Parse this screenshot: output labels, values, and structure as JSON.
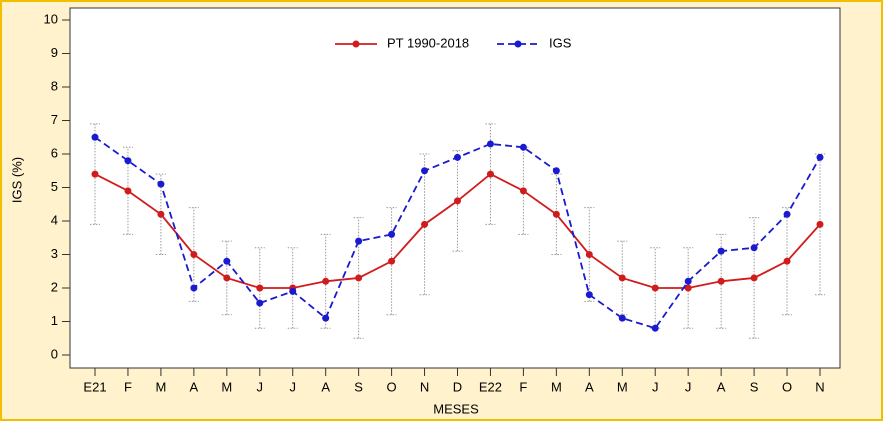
{
  "chart_data": {
    "type": "line",
    "x_label": "MESES",
    "y_label": "IGS (%)",
    "categories": [
      "E21",
      "F",
      "M",
      "A",
      "M",
      "J",
      "J",
      "A",
      "S",
      "O",
      "N",
      "D",
      "E22",
      "F",
      "M",
      "A",
      "M",
      "J",
      "J",
      "A",
      "S",
      "O",
      "N"
    ],
    "series": [
      {
        "name": "PT 1990-2018",
        "color": "#d01c1c",
        "dash": false,
        "values": [
          5.4,
          4.9,
          4.2,
          3.0,
          2.3,
          2.0,
          2.0,
          2.2,
          2.3,
          2.8,
          3.9,
          4.6,
          5.4,
          4.9,
          4.2,
          3.0,
          2.3,
          2.0,
          2.0,
          2.2,
          2.3,
          2.8,
          3.9
        ],
        "errors": [
          1.5,
          1.3,
          1.2,
          1.4,
          1.1,
          1.2,
          1.2,
          1.4,
          1.8,
          1.6,
          2.1,
          1.5,
          1.5,
          1.3,
          1.2,
          1.4,
          1.1,
          1.2,
          1.2,
          1.4,
          1.8,
          1.6,
          2.1
        ]
      },
      {
        "name": "IGS",
        "color": "#1a1ad0",
        "dash": true,
        "values": [
          6.5,
          5.8,
          5.1,
          2.0,
          2.8,
          1.55,
          1.9,
          1.1,
          3.4,
          3.6,
          5.5,
          5.9,
          6.3,
          6.2,
          5.5,
          1.8,
          1.1,
          0.8,
          2.2,
          3.1,
          3.2,
          4.2,
          5.9
        ]
      }
    ],
    "ylim": [
      0,
      10
    ],
    "yticks": [
      0,
      1,
      2,
      3,
      4,
      5,
      6,
      7,
      8,
      9,
      10
    ],
    "legend": "top"
  }
}
